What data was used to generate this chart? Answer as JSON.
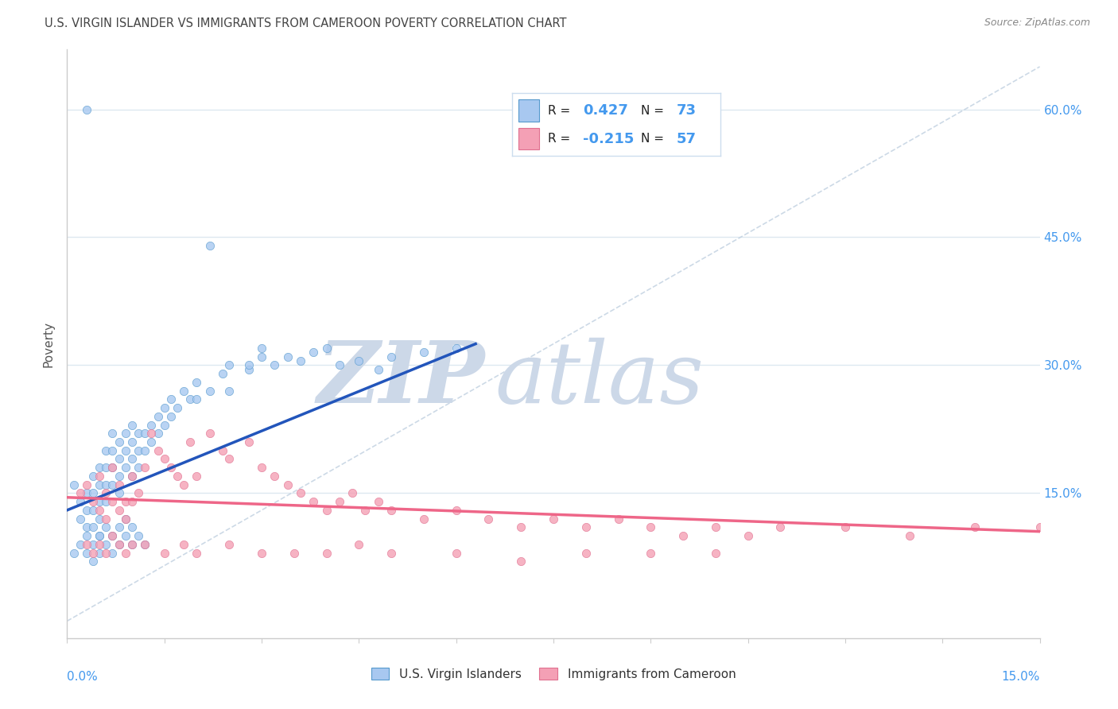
{
  "title": "U.S. VIRGIN ISLANDER VS IMMIGRANTS FROM CAMEROON POVERTY CORRELATION CHART",
  "source": "Source: ZipAtlas.com",
  "ylabel": "Poverty",
  "xmin": 0.0,
  "xmax": 0.15,
  "ymin": -0.02,
  "ymax": 0.67,
  "R1": 0.427,
  "N1": 73,
  "R2": -0.215,
  "N2": 57,
  "color_blue": "#a8c8f0",
  "color_pink": "#f4a0b5",
  "color_blue_dark": "#5599cc",
  "color_pink_dark": "#e07090",
  "color_line_blue": "#2255bb",
  "color_line_pink": "#ee6688",
  "color_diag": "#c0d0e0",
  "watermark_zip": "#ccd8e8",
  "watermark_atlas": "#ccd8e8",
  "grid_color": "#dde8f0",
  "title_fontsize": 10.5,
  "axis_label_color": "#4499ee",
  "blue_scatter_x": [
    0.001,
    0.002,
    0.002,
    0.003,
    0.003,
    0.003,
    0.004,
    0.004,
    0.004,
    0.004,
    0.005,
    0.005,
    0.005,
    0.005,
    0.005,
    0.006,
    0.006,
    0.006,
    0.006,
    0.007,
    0.007,
    0.007,
    0.007,
    0.008,
    0.008,
    0.008,
    0.008,
    0.009,
    0.009,
    0.009,
    0.01,
    0.01,
    0.01,
    0.01,
    0.011,
    0.011,
    0.011,
    0.012,
    0.012,
    0.013,
    0.013,
    0.014,
    0.014,
    0.015,
    0.015,
    0.016,
    0.016,
    0.017,
    0.018,
    0.019,
    0.02,
    0.02,
    0.022,
    0.024,
    0.025,
    0.028,
    0.03,
    0.032,
    0.034,
    0.036,
    0.038,
    0.04,
    0.042,
    0.045,
    0.048,
    0.05,
    0.055,
    0.06,
    0.022,
    0.03,
    0.028,
    0.025,
    0.003
  ],
  "blue_scatter_y": [
    0.16,
    0.14,
    0.12,
    0.15,
    0.13,
    0.11,
    0.17,
    0.15,
    0.13,
    0.11,
    0.18,
    0.16,
    0.14,
    0.12,
    0.1,
    0.2,
    0.18,
    0.16,
    0.14,
    0.22,
    0.2,
    0.18,
    0.16,
    0.21,
    0.19,
    0.17,
    0.15,
    0.22,
    0.2,
    0.18,
    0.23,
    0.21,
    0.19,
    0.17,
    0.22,
    0.2,
    0.18,
    0.22,
    0.2,
    0.23,
    0.21,
    0.24,
    0.22,
    0.25,
    0.23,
    0.26,
    0.24,
    0.25,
    0.27,
    0.26,
    0.28,
    0.26,
    0.27,
    0.29,
    0.3,
    0.295,
    0.31,
    0.3,
    0.31,
    0.305,
    0.315,
    0.32,
    0.3,
    0.305,
    0.295,
    0.31,
    0.315,
    0.32,
    0.44,
    0.32,
    0.3,
    0.27,
    0.6
  ],
  "blue_scatter_x2": [
    0.001,
    0.002,
    0.003,
    0.003,
    0.004,
    0.004,
    0.005,
    0.005,
    0.006,
    0.006,
    0.007,
    0.007,
    0.008,
    0.008,
    0.009,
    0.009,
    0.01,
    0.01,
    0.011,
    0.012
  ],
  "blue_scatter_y2": [
    0.08,
    0.09,
    0.08,
    0.1,
    0.09,
    0.07,
    0.1,
    0.08,
    0.11,
    0.09,
    0.1,
    0.08,
    0.11,
    0.09,
    0.12,
    0.1,
    0.11,
    0.09,
    0.1,
    0.09
  ],
  "pink_scatter_x": [
    0.002,
    0.003,
    0.004,
    0.005,
    0.006,
    0.007,
    0.008,
    0.009,
    0.01,
    0.011,
    0.012,
    0.013,
    0.014,
    0.015,
    0.016,
    0.017,
    0.018,
    0.019,
    0.02,
    0.022,
    0.024,
    0.025,
    0.028,
    0.03,
    0.032,
    0.034,
    0.036,
    0.038,
    0.04,
    0.042,
    0.044,
    0.046,
    0.048,
    0.05,
    0.055,
    0.06,
    0.065,
    0.07,
    0.075,
    0.08,
    0.085,
    0.09,
    0.095,
    0.1,
    0.105,
    0.11,
    0.12,
    0.13,
    0.14,
    0.15,
    0.005,
    0.006,
    0.007,
    0.008,
    0.009,
    0.01
  ],
  "pink_scatter_y": [
    0.15,
    0.16,
    0.14,
    0.17,
    0.15,
    0.18,
    0.16,
    0.14,
    0.17,
    0.15,
    0.18,
    0.22,
    0.2,
    0.19,
    0.18,
    0.17,
    0.16,
    0.21,
    0.17,
    0.22,
    0.2,
    0.19,
    0.21,
    0.18,
    0.17,
    0.16,
    0.15,
    0.14,
    0.13,
    0.14,
    0.15,
    0.13,
    0.14,
    0.13,
    0.12,
    0.13,
    0.12,
    0.11,
    0.12,
    0.11,
    0.12,
    0.11,
    0.1,
    0.11,
    0.1,
    0.11,
    0.11,
    0.1,
    0.11,
    0.11,
    0.13,
    0.12,
    0.14,
    0.13,
    0.12,
    0.14
  ],
  "pink_scatter_x2": [
    0.003,
    0.004,
    0.005,
    0.006,
    0.007,
    0.008,
    0.009,
    0.01,
    0.012,
    0.015,
    0.018,
    0.02,
    0.025,
    0.03,
    0.035,
    0.04,
    0.045,
    0.05,
    0.06,
    0.07,
    0.08,
    0.09,
    0.1
  ],
  "pink_scatter_y2": [
    0.09,
    0.08,
    0.09,
    0.08,
    0.1,
    0.09,
    0.08,
    0.09,
    0.09,
    0.08,
    0.09,
    0.08,
    0.09,
    0.08,
    0.08,
    0.08,
    0.09,
    0.08,
    0.08,
    0.07,
    0.08,
    0.08,
    0.08
  ],
  "blue_line_x0": 0.0,
  "blue_line_y0": 0.13,
  "blue_line_x1": 0.063,
  "blue_line_y1": 0.325,
  "pink_line_x0": 0.0,
  "pink_line_y0": 0.145,
  "pink_line_x1": 0.15,
  "pink_line_y1": 0.105
}
